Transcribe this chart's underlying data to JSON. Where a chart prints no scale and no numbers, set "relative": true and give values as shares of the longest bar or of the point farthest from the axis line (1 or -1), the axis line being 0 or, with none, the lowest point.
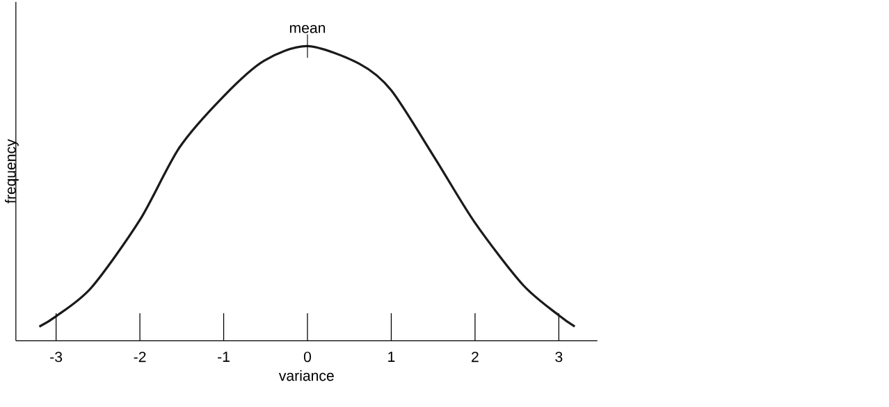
{
  "chart_data": {
    "type": "line",
    "xlabel": "variance",
    "ylabel": "frequency",
    "relative": true,
    "color": "#1a1a1a",
    "marker": "none",
    "line_style": "solid",
    "x": [
      -3.2,
      -3.0,
      -2.58,
      -2.0,
      -1.53,
      -1.0,
      -0.52,
      0,
      0.62,
      1.0,
      1.52,
      2.0,
      2.57,
      3.0,
      3.19
    ],
    "values": [
      0.048,
      0.083,
      0.18,
      0.41,
      0.655,
      0.83,
      0.95,
      1,
      0.94,
      0.85,
      0.62,
      0.4,
      0.19,
      0.086,
      0.048
    ],
    "xlim": [
      -3.48,
      3.46
    ],
    "xticks": [
      -3,
      -2,
      -1,
      0,
      1,
      2,
      3
    ],
    "annotations": [
      {
        "text": "mean",
        "x": 0,
        "y": 1
      }
    ]
  }
}
